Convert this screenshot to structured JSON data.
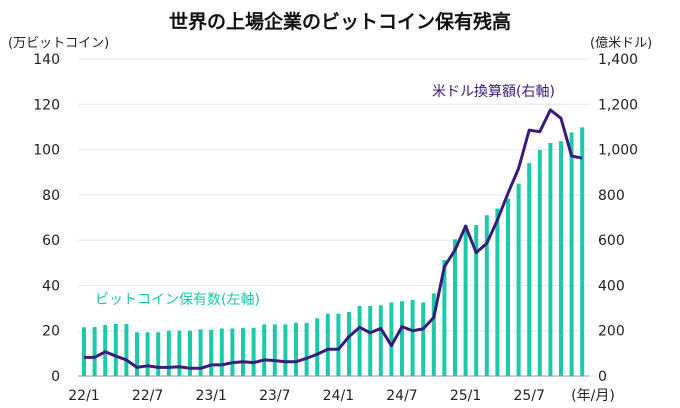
{
  "chart_data": {
    "type": "bar+line",
    "title": "世界の上場企業のビットコイン保有残高",
    "left_axis_unit": "(万ビットコイン)",
    "right_axis_unit": "(億米ドル)",
    "x_unit": "(年/月)",
    "x_tick_labels": [
      "22/1",
      "22/7",
      "23/1",
      "23/7",
      "24/1",
      "24/7",
      "25/1",
      "25/7"
    ],
    "left_ylim": [
      0,
      140
    ],
    "left_ticks": [
      "0",
      "20",
      "40",
      "60",
      "80",
      "100",
      "120",
      "140"
    ],
    "right_ylim": [
      0,
      1400
    ],
    "right_ticks": [
      "0",
      "200",
      "400",
      "600",
      "800",
      "1,000",
      "1,200",
      "1,400"
    ],
    "grid": true,
    "colors": {
      "bars": "#1cc9ab",
      "line": "#3b1a7e"
    },
    "series": [
      {
        "name": "ビットコイン保有数(左軸)",
        "axis": "left",
        "type": "bar",
        "values": [
          21.5,
          21.6,
          22.5,
          23,
          23,
          19.3,
          19.3,
          19.3,
          20,
          20,
          20,
          20.6,
          20.3,
          21,
          21,
          21.3,
          21.3,
          22.8,
          22.8,
          22.8,
          23.5,
          23.5,
          25.5,
          27.5,
          27.5,
          28.3,
          30.9,
          30.9,
          31.2,
          32.5,
          33,
          33.6,
          32.5,
          36.5,
          51.2,
          60.4,
          66.7,
          66.7,
          71,
          74,
          78.3,
          85,
          94,
          99.8,
          102.9,
          103.7,
          107.6,
          109.8
        ]
      },
      {
        "name": "米ドル換算額(右軸)",
        "axis": "right",
        "type": "line",
        "values": [
          82,
          82,
          107,
          88,
          71,
          38,
          45,
          38,
          38,
          41,
          34,
          34,
          49,
          49,
          59,
          63,
          59,
          71,
          68,
          63,
          63,
          78,
          96,
          118,
          118,
          174,
          215,
          191,
          210,
          134,
          218,
          200,
          208,
          259,
          483,
          556,
          662,
          545,
          586,
          689,
          807,
          917,
          1086,
          1079,
          1175,
          1138,
          972,
          962
        ]
      }
    ],
    "x_start": "22/1",
    "x_end": "25/12"
  }
}
